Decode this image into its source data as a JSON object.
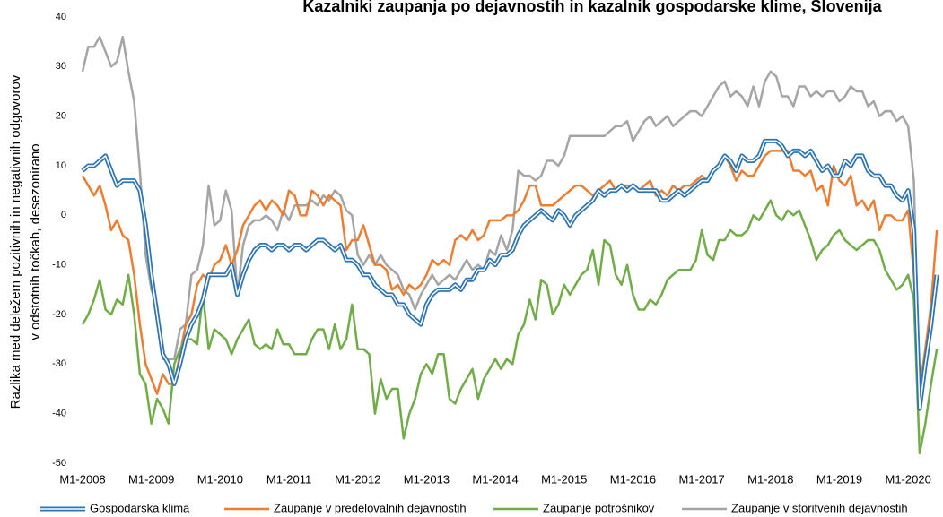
{
  "chart_data": {
    "type": "line",
    "title": "Kazalniki zaupanja po dejavnostih in kazalnik gospodarske klime, Slovenija",
    "y_label": [
      "Razlika med deležem pozitivnih in negativnih odgovorov",
      "v odstotnih točkah, desezonirano"
    ],
    "categories": [
      "M1-2008",
      null,
      null,
      null,
      null,
      null,
      null,
      null,
      null,
      null,
      null,
      null,
      "M1-2009",
      null,
      null,
      null,
      null,
      null,
      null,
      null,
      null,
      null,
      null,
      null,
      "M1-2010",
      null,
      null,
      null,
      null,
      null,
      null,
      null,
      null,
      null,
      null,
      null,
      "M1-2011",
      null,
      null,
      null,
      null,
      null,
      null,
      null,
      null,
      null,
      null,
      null,
      "M1-2012",
      null,
      null,
      null,
      null,
      null,
      null,
      null,
      null,
      null,
      null,
      null,
      "M1-2013",
      null,
      null,
      null,
      null,
      null,
      null,
      null,
      null,
      null,
      null,
      null,
      "M1-2014",
      null,
      null,
      null,
      null,
      null,
      null,
      null,
      null,
      null,
      null,
      null,
      "M1-2015",
      null,
      null,
      null,
      null,
      null,
      null,
      null,
      null,
      null,
      null,
      null,
      "M1-2016",
      null,
      null,
      null,
      null,
      null,
      null,
      null,
      null,
      null,
      null,
      null,
      "M1-2017",
      null,
      null,
      null,
      null,
      null,
      null,
      null,
      null,
      null,
      null,
      null,
      "M1-2018",
      null,
      null,
      null,
      null,
      null,
      null,
      null,
      null,
      null,
      null,
      null,
      "M1-2019",
      null,
      null,
      null,
      null,
      null,
      null,
      null,
      null,
      null,
      null,
      null,
      "M1-2020",
      null,
      null,
      null,
      null,
      null
    ],
    "series": [
      {
        "name": "Gospodarska klima",
        "color": "#2e75b6",
        "values": [
          9,
          10,
          10,
          11,
          12,
          9,
          6,
          7,
          7,
          7,
          5,
          -2,
          -12,
          -20,
          -28,
          -30,
          -34,
          -30,
          -25,
          -22,
          -20,
          -17,
          -12,
          -12,
          -12,
          -12,
          -10,
          -16,
          -12,
          -9,
          -7,
          -6,
          -6,
          -7,
          -6,
          -6,
          -7,
          -6,
          -6,
          -7,
          -6,
          -5,
          -5,
          -6,
          -7,
          -6,
          -9,
          -9,
          -10,
          -12,
          -12,
          -14,
          -15,
          -16,
          -16,
          -18,
          -18,
          -20,
          -21,
          -22,
          -18,
          -16,
          -15,
          -15,
          -15,
          -14,
          -15,
          -13,
          -13,
          -11,
          -11,
          -9,
          -10,
          -8,
          -8,
          -7,
          -4,
          -2,
          -1,
          0,
          1,
          0,
          -1,
          1,
          0,
          -2,
          0,
          1,
          2,
          3,
          5,
          4,
          5,
          5,
          6,
          5,
          6,
          5,
          5,
          5,
          5,
          3,
          3,
          4,
          5,
          4,
          5,
          6,
          7,
          7,
          9,
          10,
          12,
          11,
          9,
          12,
          11,
          11,
          12,
          15,
          15,
          15,
          14,
          12,
          13,
          13,
          12,
          13,
          11,
          9,
          10,
          8,
          8,
          11,
          10,
          12,
          12,
          9,
          8,
          8,
          6,
          6,
          4,
          3,
          5,
          -3,
          -39,
          -30,
          -22,
          -12
        ]
      },
      {
        "name": "Zaupanje v predelovalnih dejavnostih",
        "color": "#ed7d31",
        "values": [
          8,
          6,
          4,
          6,
          2,
          -3,
          -1,
          -4,
          -5,
          -12,
          -22,
          -30,
          -33,
          -36,
          -32,
          -34,
          -34,
          -28,
          -22,
          -20,
          -14,
          -12,
          -13,
          -10,
          -9,
          -6,
          -10,
          -7,
          -2,
          0,
          2,
          3,
          1,
          3,
          2,
          0,
          5,
          4,
          0,
          0,
          5,
          4,
          2,
          4,
          3,
          2,
          -7,
          -5,
          -5,
          -2,
          -6,
          -10,
          -10,
          -11,
          -15,
          -14,
          -16,
          -14,
          -15,
          -14,
          -12,
          -9,
          -10,
          -9,
          -10,
          -5,
          -4,
          -5,
          -3,
          -5,
          -4,
          -1,
          -1,
          -1,
          0,
          0,
          1,
          3,
          6,
          6,
          2,
          2,
          2,
          3,
          4,
          5,
          6,
          6,
          5,
          4,
          5,
          6,
          7,
          5,
          6,
          6,
          6,
          5,
          6,
          7,
          4,
          5,
          4,
          6,
          5,
          6,
          6,
          7,
          8,
          7,
          9,
          10,
          12,
          10,
          7,
          9,
          8,
          8,
          10,
          12,
          13,
          13,
          13,
          13,
          9,
          9,
          8,
          9,
          5,
          6,
          2,
          10,
          7,
          6,
          8,
          2,
          3,
          1,
          3,
          -3,
          0,
          0,
          -1,
          -1,
          1,
          -12,
          -35,
          -27,
          -18,
          -3
        ]
      },
      {
        "name": "Zaupanje potrošnikov",
        "color": "#70ad47",
        "values": [
          -22,
          -20,
          -17,
          -13,
          -19,
          -20,
          -17,
          -18,
          -12,
          -20,
          -32,
          -34,
          -42,
          -37,
          -39,
          -42,
          -30,
          -27,
          -25,
          -25,
          -26,
          -16,
          -27,
          -23,
          -24,
          -25,
          -28,
          -25,
          -23,
          -21,
          -26,
          -27,
          -26,
          -27,
          -23,
          -26,
          -26,
          -28,
          -28,
          -28,
          -25,
          -23,
          -23,
          -27,
          -22,
          -27,
          -25,
          -18,
          -27,
          -27,
          -28,
          -40,
          -33,
          -37,
          -35,
          -35,
          -45,
          -40,
          -37,
          -32,
          -30,
          -32,
          -28,
          -28,
          -37,
          -38,
          -35,
          -33,
          -31,
          -37,
          -33,
          -31,
          -29,
          -31,
          -29,
          -30,
          -24,
          -22,
          -17,
          -21,
          -13,
          -14,
          -20,
          -18,
          -14,
          -16,
          -14,
          -12,
          -11,
          -7,
          -14,
          -5,
          -6,
          -12,
          -14,
          -10,
          -16,
          -19,
          -19,
          -17,
          -18,
          -16,
          -13,
          -12,
          -11,
          -11,
          -11,
          -9,
          -3,
          -8,
          -9,
          -5,
          -5,
          -3,
          -4,
          -4,
          -3,
          0,
          -1,
          1,
          3,
          0,
          -1,
          1,
          0,
          1,
          -2,
          -5,
          -9,
          -7,
          -6,
          -4,
          -3,
          -5,
          -6,
          -7,
          -6,
          -5,
          -5,
          -7,
          -11,
          -13,
          -15,
          -14,
          -12,
          -17,
          -48,
          -42,
          -34,
          -27
        ]
      },
      {
        "name": "Zaupanje v storitvenih dejavnostih",
        "color": "#a5a5a5",
        "values": [
          29,
          34,
          34,
          36,
          33,
          30,
          31,
          36,
          29,
          23,
          9,
          -8,
          -15,
          -18,
          -29,
          -29,
          -29,
          -23,
          -22,
          -12,
          -11,
          -6,
          6,
          -2,
          -1,
          5,
          1,
          -16,
          -6,
          -2,
          -1,
          -1,
          0,
          -1,
          -3,
          1,
          -1,
          2,
          2,
          2,
          3,
          2,
          4,
          3,
          5,
          4,
          1,
          0,
          -8,
          -10,
          -8,
          -10,
          -8,
          -10,
          -11,
          -12,
          -15,
          -16,
          -19,
          -16,
          -14,
          -12,
          -14,
          -13,
          -12,
          -13,
          -11,
          -9,
          -11,
          -10,
          -11,
          -7,
          -8,
          -4,
          -7,
          -3,
          9,
          8,
          8,
          7,
          8,
          11,
          11,
          10,
          12,
          16,
          16,
          16,
          16,
          16,
          16,
          16,
          17,
          18,
          18,
          19,
          15,
          17,
          19,
          20,
          18,
          19,
          20,
          18,
          19,
          20,
          21,
          21,
          20,
          22,
          24,
          26,
          27,
          24,
          25,
          24,
          22,
          26,
          22,
          27,
          29,
          28,
          24,
          24,
          22,
          26,
          26,
          24,
          25,
          24,
          25,
          25,
          23,
          24,
          26,
          25,
          25,
          22,
          23,
          20,
          21,
          21,
          19,
          20,
          18,
          7,
          -37,
          -27,
          -20,
          -12
        ]
      }
    ],
    "ylim": [
      -50,
      40
    ],
    "yticks": [
      -50,
      -40,
      -30,
      -20,
      -10,
      0,
      10,
      20,
      30,
      40
    ],
    "negative_tick_color": "#ff0000",
    "grid": false,
    "legend_position": "bottom"
  }
}
